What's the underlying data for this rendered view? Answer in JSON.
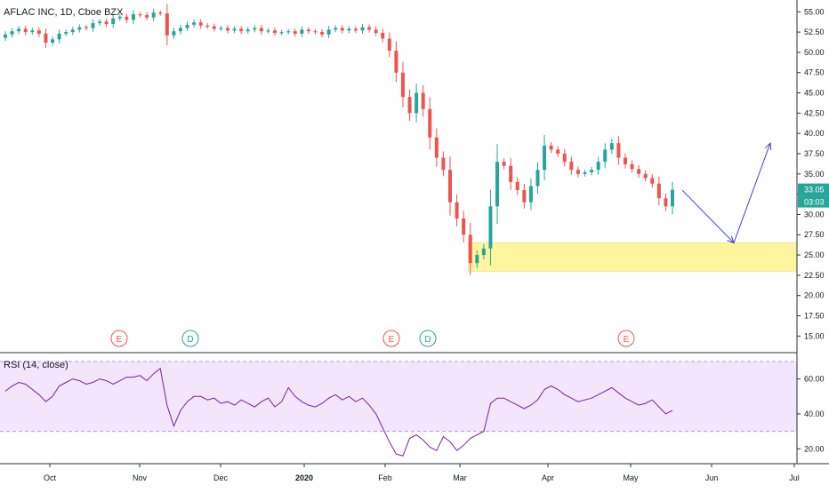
{
  "chart_data": [
    {
      "type": "candlestick",
      "title": "AFLAC INC, 1D, Cboe BZX",
      "x_tick_labels": [
        "Oct",
        "Nov",
        "Dec",
        "2020",
        "Feb",
        "Mar",
        "Apr",
        "May",
        "Jun",
        "Jul"
      ],
      "y_tick_labels": [
        "15.00",
        "17.50",
        "20.00",
        "22.50",
        "25.00",
        "27.50",
        "30.00",
        "32.50",
        "35.00",
        "37.50",
        "40.00",
        "42.50",
        "45.00",
        "47.50",
        "50.00",
        "52.50",
        "55.00"
      ],
      "ylim": [
        13.5,
        55.8
      ],
      "last_price_label": "33.05",
      "countdown_label": "03:03",
      "up_color": "#26a69a",
      "down_color": "#ef5350",
      "support_zone": {
        "low": 23.0,
        "high": 26.5,
        "color": "#fff59d"
      },
      "event_markers": [
        {
          "label": "E",
          "color": "#ef5350"
        },
        {
          "label": "D",
          "color": "#26a69a"
        },
        {
          "label": "E",
          "color": "#ef5350"
        },
        {
          "label": "D",
          "color": "#26a69a"
        },
        {
          "label": "E",
          "color": "#ef5350"
        }
      ],
      "projection_arrow": {
        "color": "#3f3fd8",
        "points": [
          [
            33.0
          ],
          [
            26.5
          ],
          [
            38.8
          ]
        ]
      },
      "series": [
        {
          "name": "",
          "close_path": [
            52.2,
            52.6,
            52.9,
            52.5,
            52.7,
            52.3,
            51.2,
            51.6,
            52.3,
            52.5,
            52.8,
            53.1,
            53.0,
            53.6,
            53.8,
            53.5,
            54.2,
            54.4,
            54.0,
            54.7,
            54.6,
            54.3,
            54.9,
            54.8,
            52.1,
            52.6,
            53.0,
            53.4,
            53.7,
            53.3,
            53.2,
            52.9,
            53.0,
            52.7,
            52.9,
            52.6,
            52.8,
            53.0,
            52.6,
            52.7,
            52.4,
            52.5,
            52.6,
            52.3,
            52.8,
            52.6,
            52.5,
            52.2,
            52.8,
            53.0,
            52.7,
            52.9,
            52.7,
            53.1,
            52.8,
            52.4,
            51.7,
            50.2,
            47.5,
            44.5,
            42.5,
            45.0,
            43.0,
            39.5,
            37.0,
            35.5,
            31.5,
            29.5,
            27.5,
            24.0,
            25.0,
            25.8,
            31.0,
            36.5,
            36.0,
            34.0,
            33.0,
            31.5,
            33.5,
            35.5,
            38.5,
            38.0,
            37.5,
            36.5,
            35.5,
            35.0,
            35.2,
            35.5,
            36.5,
            38.0,
            38.8,
            37.0,
            36.2,
            35.6,
            35.0,
            34.5,
            33.8,
            32.0,
            31.0,
            33.05
          ]
        }
      ]
    },
    {
      "type": "line",
      "title": "RSI (14, close)",
      "y_tick_labels": [
        "20.00",
        "40.00",
        "60.00"
      ],
      "ylim": [
        12,
        72
      ],
      "band": {
        "low": 30,
        "high": 70,
        "color": "#f3e5fb"
      },
      "line_color": "#7b1fa2",
      "series": [
        {
          "name": "",
          "values": [
            53,
            56,
            58,
            57,
            54,
            51,
            47,
            50,
            56,
            58,
            60,
            59,
            57,
            58,
            60,
            59,
            57,
            59,
            61,
            61,
            62,
            59,
            63,
            66,
            45,
            33,
            42,
            47,
            50,
            50,
            48,
            49,
            46,
            47,
            45,
            48,
            46,
            44,
            47,
            49,
            44,
            47,
            55,
            50,
            47,
            45,
            44,
            46,
            49,
            51,
            48,
            50,
            47,
            49,
            45,
            40,
            32,
            24,
            17,
            16,
            26,
            28,
            25,
            21,
            19,
            27,
            24,
            19,
            22,
            26,
            28,
            30,
            46,
            49,
            49,
            47,
            45,
            43,
            45,
            48,
            54,
            56,
            54,
            51,
            49,
            47,
            48,
            49,
            51,
            53,
            55,
            52,
            49,
            47,
            45,
            46,
            48,
            44,
            40,
            42
          ]
        }
      ]
    }
  ]
}
